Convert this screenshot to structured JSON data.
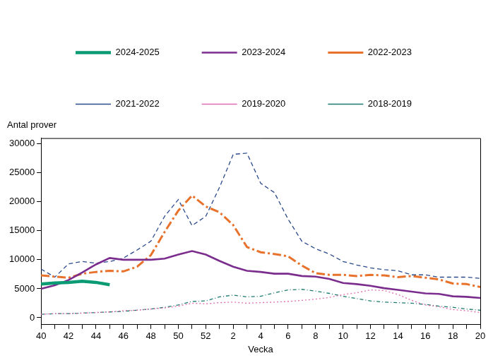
{
  "chart_data": {
    "type": "line",
    "x_label": "Vecka",
    "y_label": "Antal prover",
    "categories": [
      40,
      null,
      42,
      null,
      44,
      null,
      46,
      null,
      48,
      null,
      50,
      null,
      52,
      null,
      2,
      null,
      4,
      null,
      6,
      null,
      8,
      null,
      10,
      null,
      12,
      null,
      14,
      null,
      16,
      null,
      18,
      null,
      20
    ],
    "ylim": [
      -1200,
      31000
    ],
    "yticks": [
      0,
      5000,
      10000,
      15000,
      20000,
      25000,
      30000
    ],
    "grid": false,
    "legend": "top",
    "series": [
      {
        "name": "2024-2025",
        "color": "#0a9a74",
        "line_style": "solid",
        "values": [
          5800,
          6000,
          6100,
          6300,
          6100,
          5700,
          null,
          null,
          null,
          null,
          null,
          null,
          null,
          null,
          null,
          null,
          null,
          null,
          null,
          null,
          null,
          null,
          null,
          null,
          null,
          null,
          null,
          null,
          null,
          null,
          null,
          null,
          null
        ]
      },
      {
        "name": "2023-2024",
        "color": "#7b2d8e",
        "line_style": "solid",
        "values": [
          5000,
          5600,
          6500,
          7800,
          9200,
          10300,
          10000,
          10000,
          10000,
          10200,
          10900,
          11500,
          10900,
          9800,
          8800,
          8100,
          7900,
          7600,
          7600,
          7200,
          7100,
          6700,
          6000,
          5800,
          5500,
          5100,
          4800,
          4500,
          4200,
          4100,
          3700,
          3600,
          3400
        ]
      },
      {
        "name": "2022-2023",
        "color": "#e8722c",
        "line_style": "dashdot",
        "values": [
          7300,
          7100,
          6900,
          7600,
          7900,
          8100,
          8000,
          8800,
          10800,
          14800,
          18500,
          21100,
          19200,
          18200,
          16000,
          12200,
          11300,
          11000,
          10600,
          9000,
          7700,
          7400,
          7400,
          7200,
          7400,
          7300,
          7000,
          7200,
          6900,
          6600,
          5900,
          5800,
          5300
        ]
      },
      {
        "name": "2021-2022",
        "color": "#2b4a8b",
        "line_style": "dashed",
        "values": [
          8400,
          7000,
          9300,
          9700,
          9400,
          9700,
          10300,
          11700,
          13200,
          17500,
          20400,
          15900,
          17500,
          22500,
          28200,
          28400,
          23200,
          21600,
          17000,
          13200,
          11900,
          11000,
          9700,
          9100,
          8600,
          8300,
          8100,
          7400,
          7400,
          7000,
          7000,
          7000,
          6800
        ]
      },
      {
        "name": "2019-2020",
        "color": "#e06bb0",
        "line_style": "dotted",
        "values": [
          600,
          700,
          700,
          800,
          900,
          1000,
          1200,
          1300,
          1500,
          1700,
          2000,
          2500,
          2400,
          2600,
          2700,
          2500,
          2600,
          2700,
          2800,
          3000,
          3200,
          3500,
          4000,
          4300,
          4800,
          4700,
          4000,
          3000,
          2200,
          1900,
          1400,
          1200,
          900
        ]
      },
      {
        "name": "2018-2019",
        "color": "#1b7a6e",
        "line_style": "dashdot",
        "values": [
          600,
          700,
          700,
          800,
          900,
          1000,
          1100,
          1300,
          1500,
          1800,
          2200,
          2800,
          2900,
          3600,
          3900,
          3600,
          3700,
          4300,
          4800,
          4900,
          4600,
          4200,
          3700,
          3300,
          2900,
          2700,
          2600,
          2500,
          2300,
          2000,
          1800,
          1500,
          1300
        ]
      }
    ]
  }
}
